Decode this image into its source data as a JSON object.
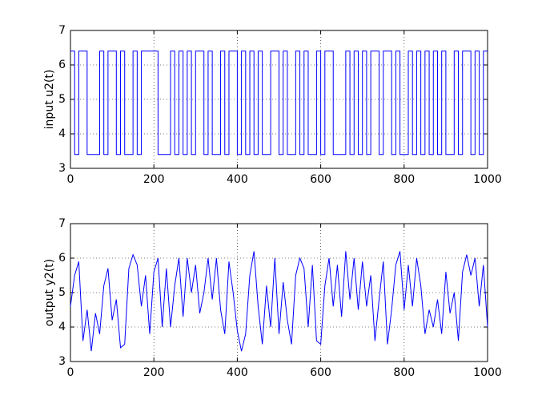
{
  "chart_data": [
    {
      "type": "stairs",
      "ylabel": "input u2(t)",
      "color": "#0000ff",
      "grid": true,
      "xlim": [
        0,
        1000
      ],
      "ylim": [
        3,
        7
      ],
      "xticks": [
        0,
        200,
        400,
        600,
        800,
        1000
      ],
      "yticks": [
        3,
        4,
        5,
        6,
        7
      ],
      "x": [
        0,
        10,
        20,
        30,
        40,
        50,
        60,
        70,
        80,
        90,
        100,
        110,
        120,
        130,
        140,
        150,
        160,
        170,
        180,
        190,
        200,
        210,
        220,
        230,
        240,
        250,
        260,
        270,
        280,
        290,
        300,
        310,
        320,
        330,
        340,
        350,
        360,
        370,
        380,
        390,
        400,
        410,
        420,
        430,
        440,
        450,
        460,
        470,
        480,
        490,
        500,
        510,
        520,
        530,
        540,
        550,
        560,
        570,
        580,
        590,
        600,
        610,
        620,
        630,
        640,
        650,
        660,
        670,
        680,
        690,
        700,
        710,
        720,
        730,
        740,
        750,
        760,
        770,
        780,
        790,
        800,
        810,
        820,
        830,
        840,
        850,
        860,
        870,
        880,
        890,
        900,
        910,
        920,
        930,
        940,
        950,
        960,
        970,
        980,
        990,
        1000
      ],
      "values": [
        6.4,
        3.4,
        6.4,
        6.4,
        3.4,
        3.4,
        3.4,
        6.4,
        3.4,
        6.4,
        6.4,
        3.4,
        6.4,
        3.4,
        3.4,
        6.4,
        3.4,
        6.4,
        6.4,
        6.4,
        6.4,
        3.4,
        3.4,
        3.4,
        6.4,
        3.4,
        6.4,
        3.4,
        6.4,
        3.4,
        6.4,
        6.4,
        3.4,
        6.4,
        3.4,
        3.4,
        6.4,
        3.4,
        6.4,
        6.4,
        3.4,
        6.4,
        3.4,
        6.4,
        3.4,
        6.4,
        3.4,
        3.4,
        6.4,
        6.4,
        3.4,
        6.4,
        3.4,
        3.4,
        6.4,
        3.4,
        6.4,
        3.4,
        3.4,
        6.4,
        3.4,
        6.4,
        6.4,
        3.4,
        3.4,
        3.4,
        6.4,
        3.4,
        6.4,
        3.4,
        6.4,
        3.4,
        6.4,
        6.4,
        3.4,
        6.4,
        6.4,
        3.4,
        6.4,
        3.4,
        3.4,
        6.4,
        3.4,
        6.4,
        3.4,
        6.4,
        3.4,
        6.4,
        3.4,
        6.4,
        3.4,
        3.4,
        6.4,
        3.4,
        6.4,
        6.4,
        3.4,
        6.4,
        3.4,
        6.4,
        6.4
      ]
    },
    {
      "type": "line",
      "ylabel": "output y2(t)",
      "color": "#0000ff",
      "grid": true,
      "xlim": [
        0,
        1000
      ],
      "ylim": [
        3,
        7
      ],
      "xticks": [
        0,
        200,
        400,
        600,
        800,
        1000
      ],
      "yticks": [
        3,
        4,
        5,
        6,
        7
      ],
      "x": [
        0,
        10,
        20,
        30,
        40,
        50,
        60,
        70,
        80,
        90,
        100,
        110,
        120,
        130,
        140,
        150,
        160,
        170,
        180,
        190,
        200,
        210,
        220,
        230,
        240,
        250,
        260,
        270,
        280,
        290,
        300,
        310,
        320,
        330,
        340,
        350,
        360,
        370,
        380,
        390,
        400,
        410,
        420,
        430,
        440,
        450,
        460,
        470,
        480,
        490,
        500,
        510,
        520,
        530,
        540,
        550,
        560,
        570,
        580,
        590,
        600,
        610,
        620,
        630,
        640,
        650,
        660,
        670,
        680,
        690,
        700,
        710,
        720,
        730,
        740,
        750,
        760,
        770,
        780,
        790,
        800,
        810,
        820,
        830,
        840,
        850,
        860,
        870,
        880,
        890,
        900,
        910,
        920,
        930,
        940,
        950,
        960,
        970,
        980,
        990,
        1000
      ],
      "values": [
        4.6,
        5.5,
        5.9,
        3.6,
        4.5,
        3.3,
        4.4,
        3.8,
        5.2,
        5.7,
        4.2,
        4.8,
        3.4,
        3.5,
        5.7,
        6.1,
        5.8,
        4.6,
        5.5,
        3.8,
        5.6,
        6.0,
        4.0,
        5.7,
        4.0,
        5.2,
        6.0,
        4.3,
        6.0,
        5.0,
        5.8,
        4.4,
        5.0,
        6.0,
        4.8,
        6.0,
        4.5,
        3.8,
        5.9,
        5.0,
        3.9,
        3.3,
        3.8,
        5.5,
        6.2,
        4.6,
        3.5,
        5.2,
        4.0,
        6.0,
        3.8,
        5.3,
        4.2,
        3.5,
        5.5,
        6.0,
        5.7,
        4.0,
        5.8,
        3.6,
        3.5,
        5.2,
        6.0,
        4.6,
        5.8,
        4.3,
        6.2,
        4.8,
        6.0,
        4.5,
        5.9,
        4.6,
        5.5,
        3.6,
        4.8,
        5.9,
        3.5,
        4.5,
        5.8,
        6.2,
        4.5,
        5.8,
        4.6,
        6.0,
        5.2,
        3.8,
        4.5,
        4.0,
        4.8,
        3.8,
        5.6,
        4.4,
        5.0,
        3.6,
        5.6,
        6.1,
        5.5,
        6.0,
        4.6,
        5.8,
        4.0
      ]
    }
  ]
}
